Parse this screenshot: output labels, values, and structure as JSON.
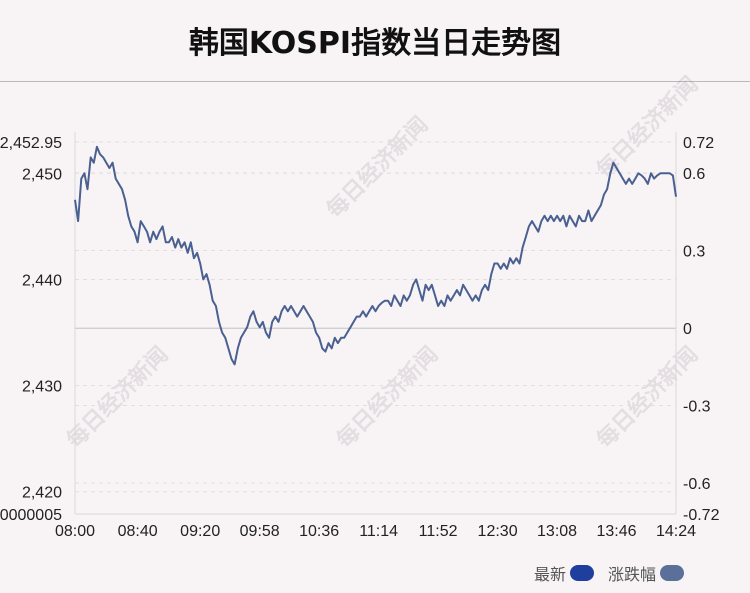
{
  "header": {
    "title": "韩国KOSPI指数当日走势图"
  },
  "watermark": {
    "text": "每日经济新闻"
  },
  "legend": {
    "items": [
      {
        "label": "最新",
        "color": "#1f3f9f"
      },
      {
        "label": "涨跌幅",
        "color": "#5a6f9a"
      }
    ]
  },
  "chart_data": {
    "type": "line",
    "title": "韩国KOSPI指数当日走势图",
    "x_ticks": [
      "08:00",
      "08:40",
      "09:20",
      "09:58",
      "10:36",
      "11:14",
      "11:52",
      "12:30",
      "13:08",
      "13:46",
      "14:24"
    ],
    "y_left_ticks": [
      {
        "value": 2452.95,
        "label": "2,452.95"
      },
      {
        "value": 2450,
        "label": "2,450"
      },
      {
        "value": 2440,
        "label": "2,440"
      },
      {
        "value": 2430,
        "label": "2,430"
      },
      {
        "value": 2420,
        "label": "2,420"
      }
    ],
    "y_left_bottom_label": "0000005",
    "y_left_range": [
      2417.9,
      2452.95
    ],
    "y_right_ticks": [
      "0.72",
      "0.6",
      "0.3",
      "0",
      "-0.3",
      "-0.6",
      "-0.72"
    ],
    "y_right_range": [
      -0.72,
      0.72
    ],
    "baseline": 2435.4,
    "grid": "dashed horizontal",
    "series": [
      {
        "color": "#4a6090",
        "points": [
          [
            "08:00",
            2447.5
          ],
          [
            "08:02",
            2445.5
          ],
          [
            "08:04",
            2449.5
          ],
          [
            "08:06",
            2450
          ],
          [
            "08:08",
            2448.5
          ],
          [
            "08:10",
            2451.5
          ],
          [
            "08:12",
            2451
          ],
          [
            "08:14",
            2452.5
          ],
          [
            "08:16",
            2451.8
          ],
          [
            "08:18",
            2451.5
          ],
          [
            "08:20",
            2451
          ],
          [
            "08:22",
            2450.5
          ],
          [
            "08:24",
            2451
          ],
          [
            "08:26",
            2449.5
          ],
          [
            "08:28",
            2449
          ],
          [
            "08:30",
            2448.5
          ],
          [
            "08:32",
            2447.5
          ],
          [
            "08:34",
            2446
          ],
          [
            "08:36",
            2445
          ],
          [
            "08:38",
            2444.5
          ],
          [
            "08:40",
            2443.5
          ],
          [
            "08:42",
            2445.5
          ],
          [
            "08:44",
            2445
          ],
          [
            "08:46",
            2444.5
          ],
          [
            "08:48",
            2443.5
          ],
          [
            "08:50",
            2444.5
          ],
          [
            "08:52",
            2443.8
          ],
          [
            "08:54",
            2444.5
          ],
          [
            "08:56",
            2445
          ],
          [
            "08:58",
            2443.5
          ],
          [
            "09:00",
            2443.5
          ],
          [
            "09:02",
            2444
          ],
          [
            "09:04",
            2443
          ],
          [
            "09:06",
            2443.8
          ],
          [
            "09:08",
            2443
          ],
          [
            "09:10",
            2443.5
          ],
          [
            "09:12",
            2442.5
          ],
          [
            "09:14",
            2443.5
          ],
          [
            "09:16",
            2442
          ],
          [
            "09:18",
            2442.5
          ],
          [
            "09:20",
            2441.5
          ],
          [
            "09:22",
            2440
          ],
          [
            "09:24",
            2440.5
          ],
          [
            "09:26",
            2439.5
          ],
          [
            "09:28",
            2438
          ],
          [
            "09:30",
            2437.5
          ],
          [
            "09:32",
            2436
          ],
          [
            "09:34",
            2435
          ],
          [
            "09:36",
            2434.5
          ],
          [
            "09:38",
            2433.5
          ],
          [
            "09:40",
            2432.5
          ],
          [
            "09:42",
            2432
          ],
          [
            "09:44",
            2433.5
          ],
          [
            "09:46",
            2434.5
          ],
          [
            "09:48",
            2435
          ],
          [
            "09:50",
            2435.5
          ],
          [
            "09:52",
            2436.5
          ],
          [
            "09:54",
            2437
          ],
          [
            "09:56",
            2436
          ],
          [
            "09:58",
            2435.5
          ],
          [
            "10:00",
            2436
          ],
          [
            "10:02",
            2435
          ],
          [
            "10:04",
            2434.5
          ],
          [
            "10:06",
            2436
          ],
          [
            "10:08",
            2436.5
          ],
          [
            "10:10",
            2436
          ],
          [
            "10:12",
            2437
          ],
          [
            "10:14",
            2437.5
          ],
          [
            "10:16",
            2437
          ],
          [
            "10:18",
            2437.5
          ],
          [
            "10:20",
            2437
          ],
          [
            "10:22",
            2436.5
          ],
          [
            "10:24",
            2437
          ],
          [
            "10:26",
            2437.5
          ],
          [
            "10:28",
            2437
          ],
          [
            "10:30",
            2436.5
          ],
          [
            "10:32",
            2436
          ],
          [
            "10:34",
            2435
          ],
          [
            "10:36",
            2434.5
          ],
          [
            "10:38",
            2433.5
          ],
          [
            "10:40",
            2433.2
          ],
          [
            "10:42",
            2434
          ],
          [
            "10:44",
            2433.5
          ],
          [
            "10:46",
            2434.5
          ],
          [
            "10:48",
            2434
          ],
          [
            "10:50",
            2434.5
          ],
          [
            "10:52",
            2434.5
          ],
          [
            "10:54",
            2435
          ],
          [
            "10:56",
            2435.5
          ],
          [
            "10:58",
            2436
          ],
          [
            "11:00",
            2436.5
          ],
          [
            "11:02",
            2436.5
          ],
          [
            "11:04",
            2437
          ],
          [
            "11:06",
            2436.5
          ],
          [
            "11:08",
            2437
          ],
          [
            "11:10",
            2437.5
          ],
          [
            "11:12",
            2437
          ],
          [
            "11:14",
            2437.5
          ],
          [
            "11:16",
            2437.8
          ],
          [
            "11:18",
            2438
          ],
          [
            "11:20",
            2438
          ],
          [
            "11:22",
            2437.5
          ],
          [
            "11:24",
            2438.5
          ],
          [
            "11:26",
            2438
          ],
          [
            "11:28",
            2437.5
          ],
          [
            "11:30",
            2438.5
          ],
          [
            "11:32",
            2438
          ],
          [
            "11:34",
            2438.5
          ],
          [
            "11:36",
            2439.5
          ],
          [
            "11:38",
            2440
          ],
          [
            "11:40",
            2439
          ],
          [
            "11:42",
            2438
          ],
          [
            "11:44",
            2439.5
          ],
          [
            "11:46",
            2439
          ],
          [
            "11:48",
            2439.5
          ],
          [
            "11:50",
            2438.5
          ],
          [
            "11:52",
            2437.5
          ],
          [
            "11:54",
            2438
          ],
          [
            "11:56",
            2437.5
          ],
          [
            "11:58",
            2438.5
          ],
          [
            "12:00",
            2438
          ],
          [
            "12:02",
            2438.5
          ],
          [
            "12:04",
            2439
          ],
          [
            "12:06",
            2438.5
          ],
          [
            "12:08",
            2439.5
          ],
          [
            "12:10",
            2439
          ],
          [
            "12:12",
            2438.5
          ],
          [
            "12:14",
            2438
          ],
          [
            "12:16",
            2438.5
          ],
          [
            "12:18",
            2438
          ],
          [
            "12:20",
            2439
          ],
          [
            "12:22",
            2439.5
          ],
          [
            "12:24",
            2439
          ],
          [
            "12:26",
            2440.5
          ],
          [
            "12:28",
            2441.5
          ],
          [
            "12:30",
            2441.5
          ],
          [
            "12:32",
            2441
          ],
          [
            "12:34",
            2441.5
          ],
          [
            "12:36",
            2441
          ],
          [
            "12:38",
            2442
          ],
          [
            "12:40",
            2441.5
          ],
          [
            "12:42",
            2442
          ],
          [
            "12:44",
            2441.5
          ],
          [
            "12:46",
            2443
          ],
          [
            "12:48",
            2444
          ],
          [
            "12:50",
            2445
          ],
          [
            "12:52",
            2445.5
          ],
          [
            "12:54",
            2445
          ],
          [
            "12:56",
            2444.5
          ],
          [
            "12:58",
            2445.5
          ],
          [
            "13:00",
            2446
          ],
          [
            "13:02",
            2445.5
          ],
          [
            "13:04",
            2446
          ],
          [
            "13:06",
            2445.5
          ],
          [
            "13:08",
            2446
          ],
          [
            "13:10",
            2445.5
          ],
          [
            "13:12",
            2446
          ],
          [
            "13:14",
            2445
          ],
          [
            "13:16",
            2446
          ],
          [
            "13:18",
            2445.5
          ],
          [
            "13:20",
            2445
          ],
          [
            "13:22",
            2446
          ],
          [
            "13:24",
            2445.5
          ],
          [
            "13:26",
            2445.5
          ],
          [
            "13:28",
            2446.5
          ],
          [
            "13:30",
            2445.5
          ],
          [
            "13:32",
            2446
          ],
          [
            "13:34",
            2446.5
          ],
          [
            "13:36",
            2447
          ],
          [
            "13:38",
            2448
          ],
          [
            "13:40",
            2448.5
          ],
          [
            "13:42",
            2450
          ],
          [
            "13:44",
            2451
          ],
          [
            "13:46",
            2450.5
          ],
          [
            "13:48",
            2450
          ],
          [
            "13:50",
            2449.5
          ],
          [
            "13:52",
            2449
          ],
          [
            "13:54",
            2449.5
          ],
          [
            "13:56",
            2449
          ],
          [
            "13:58",
            2449.5
          ],
          [
            "14:00",
            2450
          ],
          [
            "14:02",
            2449.8
          ],
          [
            "14:04",
            2449.5
          ],
          [
            "14:06",
            2449
          ],
          [
            "14:08",
            2450
          ],
          [
            "14:10",
            2449.5
          ],
          [
            "14:12",
            2449.8
          ],
          [
            "14:14",
            2450
          ],
          [
            "14:16",
            2450
          ],
          [
            "14:18",
            2450
          ],
          [
            "14:20",
            2450
          ],
          [
            "14:22",
            2449.8
          ],
          [
            "14:24",
            2447.8
          ]
        ]
      }
    ]
  }
}
